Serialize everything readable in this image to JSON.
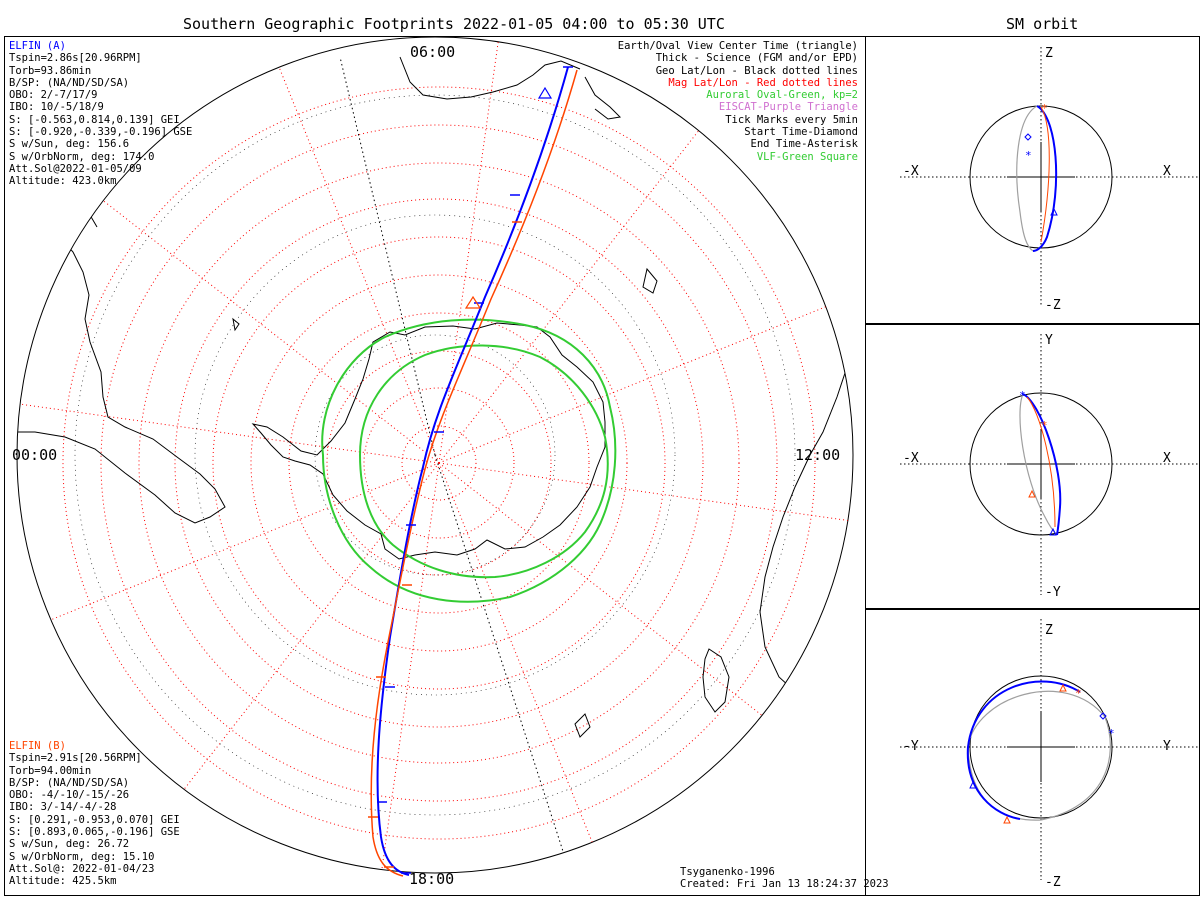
{
  "main_title": "Southern Geographic Footprints 2022-01-05 04:00 to 05:30 UTC",
  "orbit_title": "SM orbit",
  "colors": {
    "elfin_a": "#0000ff",
    "elfin_b": "#ff4500",
    "mag_grid": "#ff0000",
    "aurora": "#33cc33",
    "eiscat": "#d070d0",
    "vlf": "#33cc33",
    "orbit_gray": "#a0a0a0"
  },
  "time_labels": {
    "top": "06:00",
    "left": "00:00",
    "right": "12:00",
    "bottom": "18:00"
  },
  "elfin_a": {
    "name": "ELFIN (A)",
    "lines": [
      "Tspin=2.86s[20.96RPM]",
      "Torb=93.86min",
      "B/SP: (NA/ND/SD/SA)",
      "OBO: 2/-7/17/9",
      "IBO: 10/-5/18/9",
      "S: [-0.563,0.814,0.139] GEI",
      "S: [-0.920,-0.339,-0.196] GSE",
      "S w/Sun, deg: 156.6",
      "S w/OrbNorm, deg: 174.0",
      "Att.Sol@2022-01-05/09",
      "Altitude: 423.0km"
    ]
  },
  "elfin_b": {
    "name": "ELFIN (B)",
    "lines": [
      "Tspin=2.91s[20.56RPM]",
      "Torb=94.00min",
      "B/SP: (NA/ND/SD/SA)",
      "OBO: -4/-10/-15/-26",
      "IBO: 3/-14/-4/-28",
      "S: [0.291,-0.953,0.070] GEI",
      "S: [0.893,0.065,-0.196] GSE",
      "S w/Sun, deg: 26.72",
      "S w/OrbNorm, deg: 15.10",
      "Att.Sol@: 2022-01-04/23",
      "Altitude: 425.5km"
    ]
  },
  "legend": [
    {
      "text": "Earth/Oval View Center Time (triangle)",
      "color": "#000000"
    },
    {
      "text": "Thick - Science (FGM and/or EPD)",
      "color": "#000000"
    },
    {
      "text": "Geo Lat/Lon - Black dotted lines",
      "color": "#000000"
    },
    {
      "text": "Mag Lat/Lon - Red dotted lines",
      "color": "#ff0000"
    },
    {
      "text": "Auroral Oval-Green, kp=2",
      "color": "#33cc33"
    },
    {
      "text": "EISCAT-Purple Triangle",
      "color": "#d070d0"
    },
    {
      "text": "Tick Marks every 5min",
      "color": "#000000"
    },
    {
      "text": "Start Time-Diamond",
      "color": "#000000"
    },
    {
      "text": "End Time-Asterisk",
      "color": "#000000"
    },
    {
      "text": "VLF-Green Square",
      "color": "#33cc33"
    }
  ],
  "footer": {
    "model": "Tsyganenko-1996",
    "created": "Created: Fri Jan 13 18:24:37 2023"
  },
  "orbit_panels": [
    {
      "top": "Z",
      "bottom": "-Z",
      "left": "-X",
      "right": "X"
    },
    {
      "top": "Y",
      "bottom": "-Y",
      "left": "-X",
      "right": "X"
    },
    {
      "top": "Z",
      "bottom": "-Z",
      "left": "-Y",
      "right": "Y"
    }
  ]
}
